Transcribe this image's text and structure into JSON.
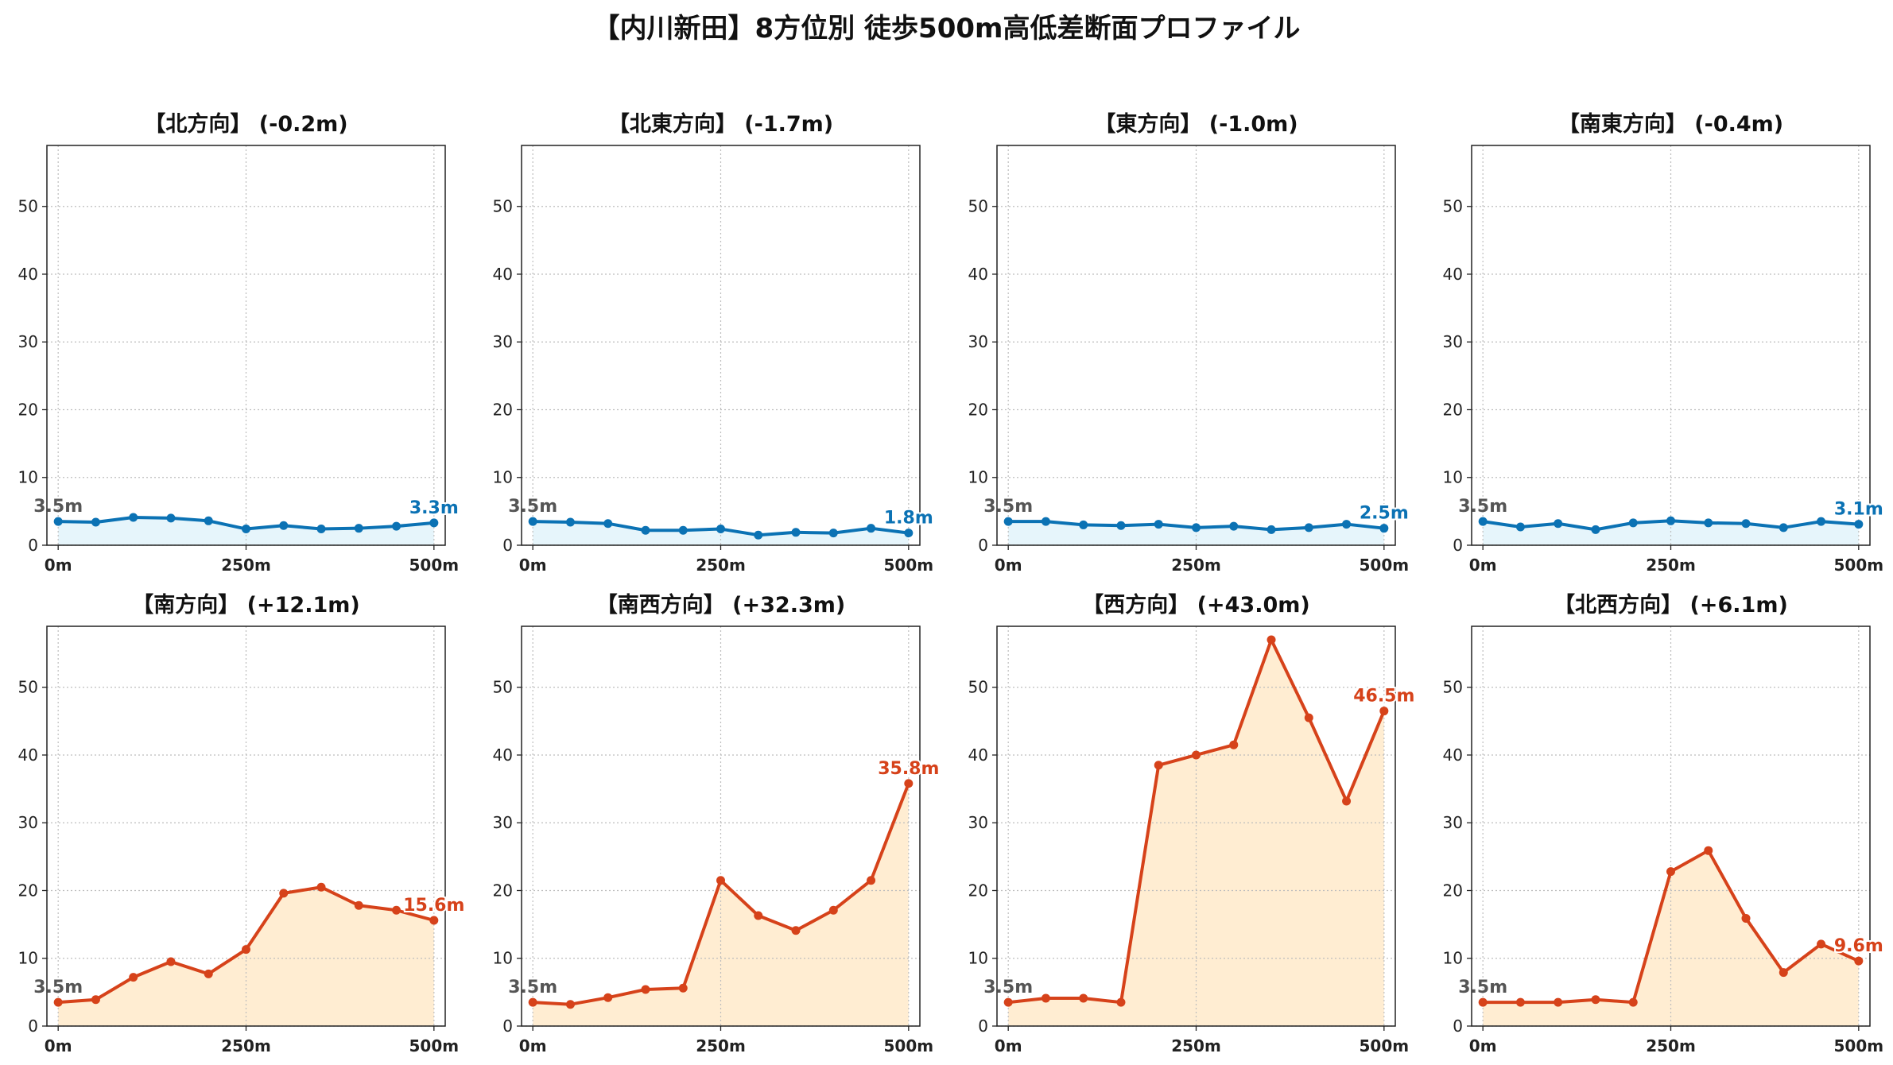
{
  "title": "【内川新田】8方位別 徒歩500m高低差断面プロファイル",
  "colors": {
    "down_line": "#0b72b4",
    "down_fill": "#e6f5fb",
    "up_line": "#d6421a",
    "up_fill": "#ffedd2",
    "start_label": "#555555",
    "grid": "#bdbdbd"
  },
  "chart_data": [
    {
      "type": "area",
      "title": "【北方向】 (-0.2m)",
      "trend": "down",
      "x": [
        0,
        50,
        100,
        150,
        200,
        250,
        300,
        350,
        400,
        450,
        500
      ],
      "y": [
        3.5,
        3.4,
        4.1,
        4.0,
        3.6,
        2.4,
        2.9,
        2.4,
        2.5,
        2.8,
        3.3
      ],
      "xticks": [
        0,
        250,
        500
      ],
      "xtick_labels": [
        "0m",
        "250m",
        "500m"
      ],
      "yticks": [
        0,
        10,
        20,
        30,
        40,
        50
      ],
      "ylim": [
        0,
        59
      ],
      "xlim": [
        -15,
        515
      ],
      "grid": true,
      "start_label": "3.5m",
      "end_label": "3.3m"
    },
    {
      "type": "area",
      "title": "【北東方向】 (-1.7m)",
      "trend": "down",
      "x": [
        0,
        50,
        100,
        150,
        200,
        250,
        300,
        350,
        400,
        450,
        500
      ],
      "y": [
        3.5,
        3.4,
        3.2,
        2.2,
        2.2,
        2.4,
        1.5,
        1.9,
        1.8,
        2.5,
        1.8
      ],
      "xticks": [
        0,
        250,
        500
      ],
      "xtick_labels": [
        "0m",
        "250m",
        "500m"
      ],
      "yticks": [
        0,
        10,
        20,
        30,
        40,
        50
      ],
      "ylim": [
        0,
        59
      ],
      "xlim": [
        -15,
        515
      ],
      "grid": true,
      "start_label": "3.5m",
      "end_label": "1.8m"
    },
    {
      "type": "area",
      "title": "【東方向】 (-1.0m)",
      "trend": "down",
      "x": [
        0,
        50,
        100,
        150,
        200,
        250,
        300,
        350,
        400,
        450,
        500
      ],
      "y": [
        3.5,
        3.5,
        3.0,
        2.9,
        3.1,
        2.6,
        2.8,
        2.3,
        2.6,
        3.1,
        2.5
      ],
      "xticks": [
        0,
        250,
        500
      ],
      "xtick_labels": [
        "0m",
        "250m",
        "500m"
      ],
      "yticks": [
        0,
        10,
        20,
        30,
        40,
        50
      ],
      "ylim": [
        0,
        59
      ],
      "xlim": [
        -15,
        515
      ],
      "grid": true,
      "start_label": "3.5m",
      "end_label": "2.5m"
    },
    {
      "type": "area",
      "title": "【南東方向】 (-0.4m)",
      "trend": "down",
      "x": [
        0,
        50,
        100,
        150,
        200,
        250,
        300,
        350,
        400,
        450,
        500
      ],
      "y": [
        3.5,
        2.7,
        3.2,
        2.3,
        3.3,
        3.6,
        3.3,
        3.2,
        2.6,
        3.5,
        3.1
      ],
      "xticks": [
        0,
        250,
        500
      ],
      "xtick_labels": [
        "0m",
        "250m",
        "500m"
      ],
      "yticks": [
        0,
        10,
        20,
        30,
        40,
        50
      ],
      "ylim": [
        0,
        59
      ],
      "xlim": [
        -15,
        515
      ],
      "grid": true,
      "start_label": "3.5m",
      "end_label": "3.1m"
    },
    {
      "type": "area",
      "title": "【南方向】 (+12.1m)",
      "trend": "up",
      "x": [
        0,
        50,
        100,
        150,
        200,
        250,
        300,
        350,
        400,
        450,
        500
      ],
      "y": [
        3.5,
        3.9,
        7.2,
        9.5,
        7.7,
        11.3,
        19.6,
        20.5,
        17.8,
        17.1,
        15.6
      ],
      "xticks": [
        0,
        250,
        500
      ],
      "xtick_labels": [
        "0m",
        "250m",
        "500m"
      ],
      "yticks": [
        0,
        10,
        20,
        30,
        40,
        50
      ],
      "ylim": [
        0,
        59
      ],
      "xlim": [
        -15,
        515
      ],
      "grid": true,
      "start_label": "3.5m",
      "end_label": "15.6m"
    },
    {
      "type": "area",
      "title": "【南西方向】 (+32.3m)",
      "trend": "up",
      "x": [
        0,
        50,
        100,
        150,
        200,
        250,
        300,
        350,
        400,
        450,
        500
      ],
      "y": [
        3.5,
        3.2,
        4.2,
        5.4,
        5.6,
        21.5,
        16.3,
        14.1,
        17.1,
        21.5,
        35.8
      ],
      "xticks": [
        0,
        250,
        500
      ],
      "xtick_labels": [
        "0m",
        "250m",
        "500m"
      ],
      "yticks": [
        0,
        10,
        20,
        30,
        40,
        50
      ],
      "ylim": [
        0,
        59
      ],
      "xlim": [
        -15,
        515
      ],
      "grid": true,
      "start_label": "3.5m",
      "end_label": "35.8m"
    },
    {
      "type": "area",
      "title": "【西方向】 (+43.0m)",
      "trend": "up",
      "x": [
        0,
        50,
        100,
        150,
        200,
        250,
        300,
        350,
        400,
        450,
        500
      ],
      "y": [
        3.5,
        4.1,
        4.1,
        3.5,
        38.5,
        40.0,
        41.5,
        57.0,
        45.5,
        33.2,
        46.5
      ],
      "xticks": [
        0,
        250,
        500
      ],
      "xtick_labels": [
        "0m",
        "250m",
        "500m"
      ],
      "yticks": [
        0,
        10,
        20,
        30,
        40,
        50
      ],
      "ylim": [
        0,
        59
      ],
      "xlim": [
        -15,
        515
      ],
      "grid": true,
      "start_label": "3.5m",
      "end_label": "46.5m"
    },
    {
      "type": "area",
      "title": "【北西方向】 (+6.1m)",
      "trend": "up",
      "x": [
        0,
        50,
        100,
        150,
        200,
        250,
        300,
        350,
        400,
        450,
        500
      ],
      "y": [
        3.5,
        3.5,
        3.5,
        3.9,
        3.5,
        22.8,
        25.9,
        15.9,
        7.9,
        12.1,
        9.6
      ],
      "xticks": [
        0,
        250,
        500
      ],
      "xtick_labels": [
        "0m",
        "250m",
        "500m"
      ],
      "yticks": [
        0,
        10,
        20,
        30,
        40,
        50
      ],
      "ylim": [
        0,
        59
      ],
      "xlim": [
        -15,
        515
      ],
      "grid": true,
      "start_label": "3.5m",
      "end_label": "9.6m"
    }
  ]
}
